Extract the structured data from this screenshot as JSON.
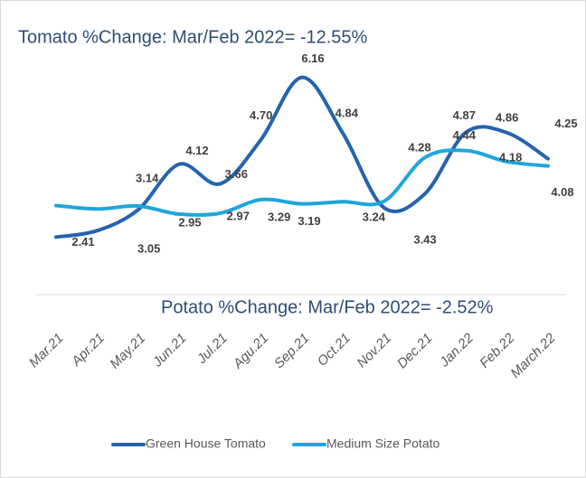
{
  "chart_data": {
    "type": "line",
    "title": "Tomato %Change: Mar/Feb 2022= -12.55%",
    "annotations": [
      "Potato %Change: Mar/Feb 2022= -2.52%"
    ],
    "categories": [
      "Mar.21",
      "Apr.21",
      "May.21",
      "Jun.21",
      "Jul.21",
      "Agu.21",
      "Sep.21",
      "Oct.21",
      "Nov.21",
      "Dec.21",
      "Jan.22",
      "Feb.22",
      "March.22"
    ],
    "series": [
      {
        "name": "Green House Tomato",
        "color": "#2563ad",
        "values": [
          2.41,
          2.56,
          3.05,
          4.12,
          3.66,
          4.7,
          6.16,
          4.84,
          3.1,
          3.43,
          4.87,
          4.86,
          4.25
        ],
        "value_labels": [
          "2.41",
          null,
          "3.05",
          "4.12",
          "3.66",
          "4.70",
          "6.16",
          "4.84",
          null,
          "3.43",
          "4.87",
          "4.86",
          "4.25"
        ]
      },
      {
        "name": "Medium Size Potato",
        "color": "#1ea6dc",
        "values": [
          3.15,
          3.07,
          3.14,
          2.95,
          2.97,
          3.29,
          3.19,
          3.24,
          3.25,
          4.28,
          4.44,
          4.18,
          4.08
        ],
        "value_labels": [
          null,
          null,
          "3.14",
          "2.95",
          "2.97",
          "3.29",
          "3.19",
          "3.24",
          null,
          "4.28",
          "4.44",
          "4.18",
          "4.08"
        ]
      }
    ],
    "ylim": [
      0,
      7
    ],
    "legend": "bottom"
  }
}
